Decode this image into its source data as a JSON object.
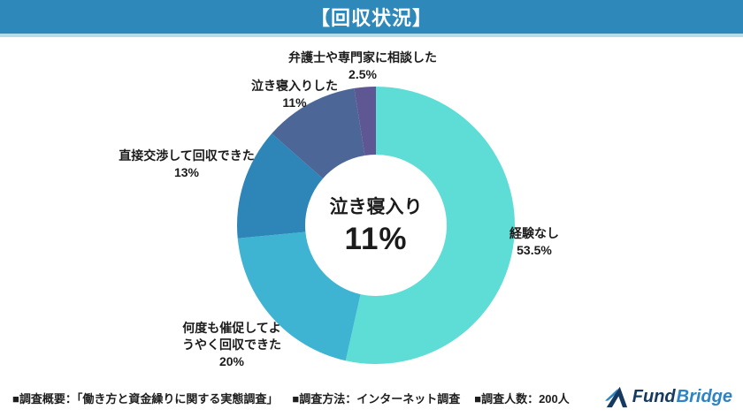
{
  "header": {
    "title": "【回収状況】",
    "bar_color": "#2E88BA",
    "accent_strip_color": "#B5DCEC"
  },
  "chart_data": {
    "type": "pie",
    "subtype": "donut",
    "title": "回収状況",
    "start_angle_deg": -90,
    "direction": "clockwise",
    "legend_position": "labels-around-chart",
    "center_label": {
      "text": "泣き寝入り",
      "value_text": "11%"
    },
    "segments": [
      {
        "label": "経験なし",
        "value": 53.5,
        "pct_label": "53.5%",
        "color": "#5EDCD6"
      },
      {
        "label": "何度も催促してようやく回収できた",
        "value": 20,
        "pct_label": "20%",
        "color": "#3FB3D2"
      },
      {
        "label": "直接交渉して回収できた",
        "value": 13,
        "pct_label": "13%",
        "color": "#2E85B8"
      },
      {
        "label": "泣き寝入りした",
        "value": 11,
        "pct_label": "11%",
        "color": "#4C6797"
      },
      {
        "label": "弁護士や専門家に相談した",
        "value": 2.5,
        "pct_label": "2.5%",
        "color": "#5F5794"
      }
    ]
  },
  "footer": {
    "items": [
      "■調査概要：「働き方と資金繰りに関する実態調査」",
      "■調査方法：インターネット調査",
      "■調査人数：200人"
    ],
    "logo": {
      "text_primary": "Fund",
      "text_secondary": "Bridge",
      "color_primary": "#16395F",
      "color_secondary": "#2C83C5"
    }
  }
}
